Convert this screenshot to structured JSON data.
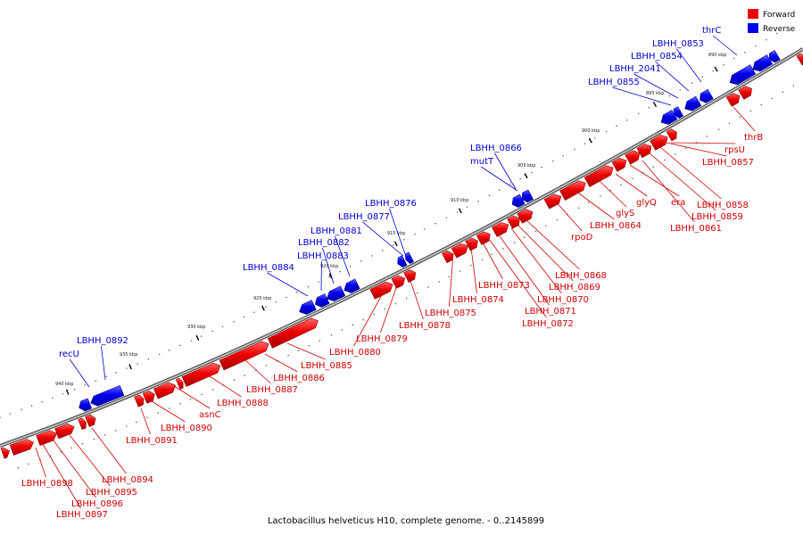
{
  "caption": "Lactobacillus helveticus H10, complete genome. - 0..2145899",
  "legend": [
    {
      "label": "Forward",
      "color": "#ee0000"
    },
    {
      "label": "Reverse",
      "color": "#0000ee"
    }
  ],
  "ticks": [
    "940 kbp",
    "935 kbp",
    "930 kbp",
    "925 kbp",
    "920 kbp",
    "915 kbp",
    "910 kbp",
    "905 kbp",
    "900 kbp",
    "895 kbp",
    "890 kbp"
  ],
  "genes": [
    {
      "name": "thrC",
      "strand": "reverse"
    },
    {
      "name": "LBHH_0853",
      "strand": "reverse"
    },
    {
      "name": "LBHH_0854",
      "strand": "reverse"
    },
    {
      "name": "LBHH_2041",
      "strand": "reverse"
    },
    {
      "name": "LBHH_0855",
      "strand": "reverse"
    },
    {
      "name": "LBHH_0866",
      "strand": "reverse"
    },
    {
      "name": "mutT",
      "strand": "reverse"
    },
    {
      "name": "LBHH_0876",
      "strand": "reverse"
    },
    {
      "name": "LBHH_0877",
      "strand": "reverse"
    },
    {
      "name": "LBHH_0881",
      "strand": "reverse"
    },
    {
      "name": "LBHH_0882",
      "strand": "reverse"
    },
    {
      "name": "LBHH_0883",
      "strand": "reverse"
    },
    {
      "name": "LBHH_0884",
      "strand": "reverse"
    },
    {
      "name": "LBHH_0892",
      "strand": "reverse"
    },
    {
      "name": "recU",
      "strand": "reverse"
    },
    {
      "name": "thrB",
      "strand": "forward"
    },
    {
      "name": "rpsU",
      "strand": "forward"
    },
    {
      "name": "LBHH_0857",
      "strand": "forward"
    },
    {
      "name": "LBHH_0858",
      "strand": "forward"
    },
    {
      "name": "LBHH_0859",
      "strand": "forward"
    },
    {
      "name": "LBHH_0861",
      "strand": "forward"
    },
    {
      "name": "era",
      "strand": "forward"
    },
    {
      "name": "glyQ",
      "strand": "forward"
    },
    {
      "name": "glyS",
      "strand": "forward"
    },
    {
      "name": "LBHH_0864",
      "strand": "forward"
    },
    {
      "name": "rpoD",
      "strand": "forward"
    },
    {
      "name": "LBHH_0868",
      "strand": "forward"
    },
    {
      "name": "LBHH_0869",
      "strand": "forward"
    },
    {
      "name": "LBHH_0870",
      "strand": "forward"
    },
    {
      "name": "LBHH_0871",
      "strand": "forward"
    },
    {
      "name": "LBHH_0872",
      "strand": "forward"
    },
    {
      "name": "LBHH_0873",
      "strand": "forward"
    },
    {
      "name": "LBHH_0874",
      "strand": "forward"
    },
    {
      "name": "LBHH_0875",
      "strand": "forward"
    },
    {
      "name": "LBHH_0878",
      "strand": "forward"
    },
    {
      "name": "LBHH_0879",
      "strand": "forward"
    },
    {
      "name": "LBHH_0880",
      "strand": "forward"
    },
    {
      "name": "LBHH_0885",
      "strand": "forward"
    },
    {
      "name": "LBHH_0886",
      "strand": "forward"
    },
    {
      "name": "LBHH_0887",
      "strand": "forward"
    },
    {
      "name": "LBHH_0888",
      "strand": "forward"
    },
    {
      "name": "asnC",
      "strand": "forward"
    },
    {
      "name": "LBHH_0890",
      "strand": "forward"
    },
    {
      "name": "LBHH_0891",
      "strand": "forward"
    },
    {
      "name": "LBHH_0894",
      "strand": "forward"
    },
    {
      "name": "LBHH_0895",
      "strand": "forward"
    },
    {
      "name": "LBHH_0896",
      "strand": "forward"
    },
    {
      "name": "LBHH_0897",
      "strand": "forward"
    },
    {
      "name": "LBHH_0898",
      "strand": "forward"
    }
  ]
}
